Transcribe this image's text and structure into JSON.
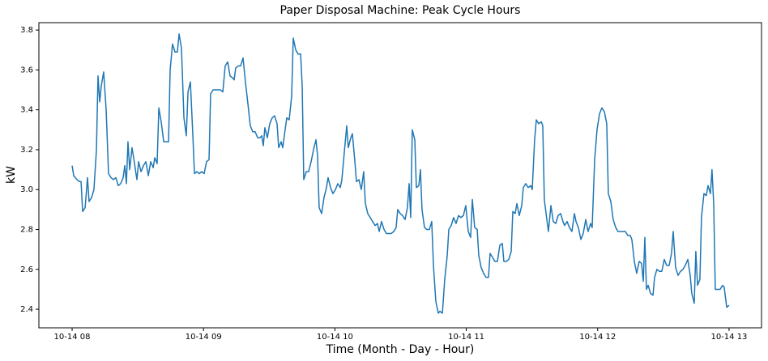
{
  "chart_data": {
    "type": "line",
    "title": "Paper Disposal Machine: Peak Cycle Hours",
    "x_label": "Time (Month - Day - Hour)",
    "y_label": "kW",
    "color": "#1f77b4",
    "grid": false,
    "xlim": [
      7.747,
      13.247
    ],
    "ylim": [
      2.307,
      3.837
    ],
    "xticks": [
      {
        "value": 8,
        "label": "10-14 08"
      },
      {
        "value": 9,
        "label": "10-14 09"
      },
      {
        "value": 10,
        "label": "10-14 10"
      },
      {
        "value": 11,
        "label": "10-14 11"
      },
      {
        "value": 12,
        "label": "10-14 12"
      },
      {
        "value": 13,
        "label": "10-14 13"
      }
    ],
    "yticks": [
      2.4,
      2.6,
      2.8,
      {
        "value": 3,
        "label": "3.0"
      },
      3.2,
      3.4,
      3.6,
      3.8
    ],
    "x": [
      8.0,
      8.012,
      8.037,
      8.055,
      8.068,
      8.08,
      8.099,
      8.117,
      8.129,
      8.148,
      8.166,
      8.185,
      8.197,
      8.21,
      8.222,
      8.24,
      8.259,
      8.277,
      8.296,
      8.314,
      8.333,
      8.351,
      8.37,
      8.388,
      8.401,
      8.413,
      8.425,
      8.438,
      8.456,
      8.475,
      8.493,
      8.506,
      8.524,
      8.543,
      8.561,
      8.58,
      8.598,
      8.617,
      8.629,
      8.647,
      8.66,
      8.678,
      8.697,
      8.715,
      8.734,
      8.746,
      8.764,
      8.783,
      8.801,
      8.814,
      8.832,
      8.851,
      8.869,
      8.882,
      8.9,
      8.919,
      8.931,
      8.949,
      8.968,
      8.986,
      9.005,
      9.023,
      9.042,
      9.054,
      9.073,
      9.091,
      9.11,
      9.128,
      9.147,
      9.165,
      9.184,
      9.202,
      9.221,
      9.233,
      9.245,
      9.264,
      9.282,
      9.301,
      9.319,
      9.338,
      9.356,
      9.375,
      9.393,
      9.412,
      9.43,
      9.443,
      9.455,
      9.467,
      9.486,
      9.504,
      9.523,
      9.541,
      9.56,
      9.572,
      9.591,
      9.603,
      9.621,
      9.634,
      9.652,
      9.671,
      9.683,
      9.702,
      9.72,
      9.739,
      9.751,
      9.763,
      9.782,
      9.8,
      9.819,
      9.837,
      9.856,
      9.868,
      9.88,
      9.899,
      9.917,
      9.936,
      9.948,
      9.967,
      9.985,
      10.004,
      10.022,
      10.041,
      10.053,
      10.072,
      10.09,
      10.102,
      10.121,
      10.133,
      10.152,
      10.164,
      10.183,
      10.201,
      10.219,
      10.232,
      10.25,
      10.269,
      10.287,
      10.306,
      10.324,
      10.337,
      10.355,
      10.374,
      10.392,
      10.411,
      10.429,
      10.448,
      10.466,
      10.478,
      10.497,
      10.515,
      10.534,
      10.552,
      10.565,
      10.577,
      10.589,
      10.608,
      10.62,
      10.639,
      10.651,
      10.663,
      10.682,
      10.7,
      10.719,
      10.737,
      10.75,
      10.768,
      10.787,
      10.799,
      10.818,
      10.836,
      10.855,
      10.867,
      10.885,
      10.904,
      10.922,
      10.941,
      10.959,
      10.978,
      10.996,
      11.015,
      11.033,
      11.046,
      11.064,
      11.083,
      11.095,
      11.113,
      11.132,
      11.15,
      11.169,
      11.181,
      11.2,
      11.218,
      11.237,
      11.255,
      11.274,
      11.286,
      11.305,
      11.323,
      11.342,
      11.354,
      11.372,
      11.385,
      11.403,
      11.422,
      11.434,
      11.453,
      11.471,
      11.49,
      11.502,
      11.52,
      11.533,
      11.551,
      11.57,
      11.582,
      11.594,
      11.613,
      11.625,
      11.644,
      11.662,
      11.681,
      11.699,
      11.718,
      11.736,
      11.748,
      11.767,
      11.785,
      11.804,
      11.823,
      11.835,
      11.853,
      11.872,
      11.89,
      11.909,
      11.927,
      11.946,
      11.958,
      11.977,
      11.995,
      12.014,
      12.032,
      12.051,
      12.069,
      12.081,
      12.1,
      12.118,
      12.137,
      12.155,
      12.174,
      12.192,
      12.211,
      12.229,
      12.248,
      12.26,
      12.279,
      12.297,
      12.316,
      12.334,
      12.347,
      12.359,
      12.371,
      12.384,
      12.402,
      12.421,
      12.433,
      12.451,
      12.47,
      12.488,
      12.507,
      12.525,
      12.544,
      12.562,
      12.575,
      12.593,
      12.612,
      12.63,
      12.649,
      12.667,
      12.686,
      12.704,
      12.716,
      12.735,
      12.747,
      12.76,
      12.778,
      12.79,
      12.809,
      12.827,
      12.84,
      12.858,
      12.87,
      12.883,
      12.895,
      12.914,
      12.932,
      12.951,
      12.963,
      12.982,
      13.0
    ],
    "values": [
      3.12,
      3.07,
      3.05,
      3.04,
      3.04,
      2.89,
      2.91,
      3.06,
      2.94,
      2.96,
      3.0,
      3.2,
      3.57,
      3.44,
      3.52,
      3.59,
      3.4,
      3.08,
      3.06,
      3.05,
      3.06,
      3.02,
      3.03,
      3.06,
      3.12,
      3.03,
      3.24,
      3.1,
      3.21,
      3.13,
      3.05,
      3.14,
      3.09,
      3.12,
      3.14,
      3.07,
      3.14,
      3.11,
      3.16,
      3.13,
      3.41,
      3.34,
      3.24,
      3.24,
      3.24,
      3.6,
      3.73,
      3.69,
      3.69,
      3.78,
      3.71,
      3.36,
      3.27,
      3.49,
      3.54,
      3.27,
      3.08,
      3.09,
      3.08,
      3.09,
      3.08,
      3.14,
      3.15,
      3.48,
      3.5,
      3.5,
      3.5,
      3.5,
      3.49,
      3.62,
      3.64,
      3.57,
      3.56,
      3.55,
      3.61,
      3.62,
      3.62,
      3.66,
      3.54,
      3.43,
      3.32,
      3.29,
      3.29,
      3.26,
      3.26,
      3.27,
      3.22,
      3.31,
      3.26,
      3.33,
      3.36,
      3.37,
      3.33,
      3.21,
      3.24,
      3.21,
      3.3,
      3.36,
      3.35,
      3.47,
      3.76,
      3.7,
      3.68,
      3.68,
      3.52,
      3.05,
      3.09,
      3.09,
      3.14,
      3.2,
      3.25,
      3.17,
      2.91,
      2.88,
      2.96,
      3.01,
      3.06,
      3.01,
      2.98,
      3.0,
      3.03,
      3.01,
      3.05,
      3.19,
      3.32,
      3.21,
      3.26,
      3.28,
      3.14,
      3.04,
      3.05,
      3.0,
      3.09,
      2.93,
      2.88,
      2.86,
      2.84,
      2.82,
      2.83,
      2.79,
      2.84,
      2.8,
      2.78,
      2.78,
      2.78,
      2.79,
      2.81,
      2.9,
      2.88,
      2.87,
      2.85,
      2.91,
      3.03,
      2.86,
      3.3,
      3.25,
      3.01,
      3.02,
      3.1,
      2.9,
      2.81,
      2.8,
      2.8,
      2.84,
      2.62,
      2.44,
      2.38,
      2.39,
      2.38,
      2.55,
      2.67,
      2.8,
      2.82,
      2.86,
      2.83,
      2.87,
      2.86,
      2.87,
      2.92,
      2.79,
      2.76,
      2.95,
      2.81,
      2.8,
      2.67,
      2.61,
      2.58,
      2.56,
      2.56,
      2.68,
      2.66,
      2.64,
      2.64,
      2.72,
      2.73,
      2.64,
      2.64,
      2.65,
      2.69,
      2.89,
      2.88,
      2.93,
      2.87,
      2.92,
      3.01,
      3.03,
      3.01,
      3.02,
      3.0,
      3.25,
      3.35,
      3.33,
      3.34,
      3.32,
      2.95,
      2.85,
      2.79,
      2.92,
      2.84,
      2.83,
      2.87,
      2.88,
      2.84,
      2.82,
      2.84,
      2.81,
      2.79,
      2.88,
      2.84,
      2.81,
      2.75,
      2.78,
      2.85,
      2.79,
      2.83,
      2.81,
      3.15,
      3.3,
      3.38,
      3.41,
      3.39,
      3.33,
      2.98,
      2.94,
      2.85,
      2.81,
      2.79,
      2.79,
      2.79,
      2.79,
      2.77,
      2.77,
      2.75,
      2.64,
      2.58,
      2.64,
      2.63,
      2.54,
      2.76,
      2.5,
      2.52,
      2.48,
      2.47,
      2.56,
      2.6,
      2.59,
      2.59,
      2.65,
      2.62,
      2.62,
      2.68,
      2.79,
      2.61,
      2.57,
      2.59,
      2.6,
      2.62,
      2.65,
      2.57,
      2.48,
      2.43,
      2.69,
      2.52,
      2.55,
      2.86,
      2.98,
      2.97,
      3.02,
      2.98,
      3.1,
      2.93,
      2.5,
      2.5,
      2.5,
      2.52,
      2.51,
      2.41,
      2.42
    ]
  }
}
